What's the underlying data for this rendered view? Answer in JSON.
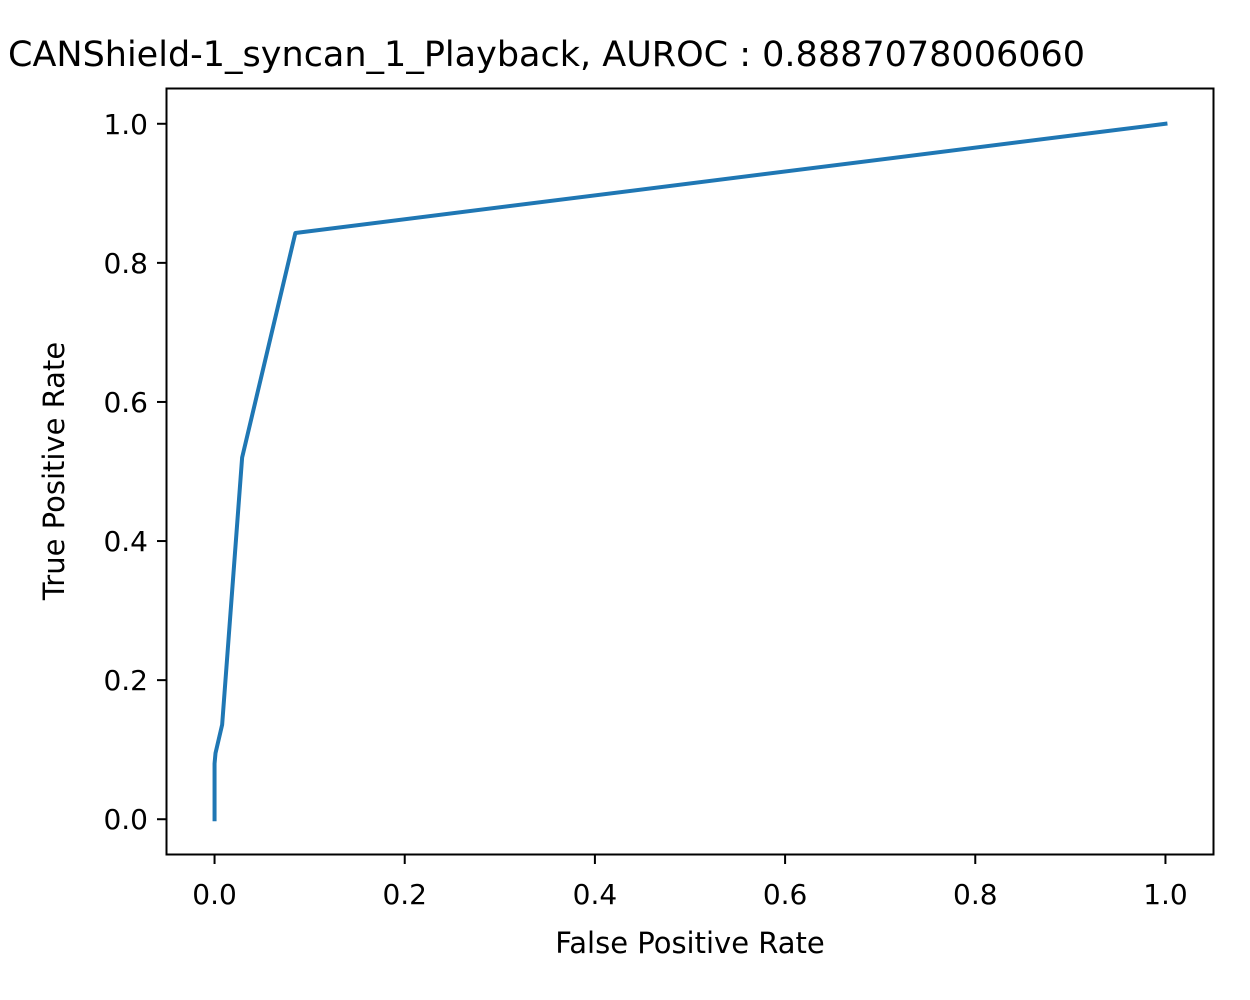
{
  "chart_data": {
    "type": "line",
    "title": "CANShield-1_syncan_1_Playback, AUROC : 0.8887078006060",
    "xlabel": "False Positive Rate",
    "ylabel": "True Positive Rate",
    "xlim": [
      -0.05,
      1.05
    ],
    "ylim": [
      -0.05,
      1.05
    ],
    "xticks": [
      0.0,
      0.2,
      0.4,
      0.6,
      0.8,
      1.0
    ],
    "yticks": [
      0.0,
      0.2,
      0.4,
      0.6,
      0.8,
      1.0
    ],
    "xtick_labels": [
      "0.0",
      "0.2",
      "0.4",
      "0.6",
      "0.8",
      "1.0"
    ],
    "ytick_labels": [
      "0.0",
      "0.2",
      "0.4",
      "0.6",
      "0.8",
      "1.0"
    ],
    "grid": false,
    "legend": "none",
    "series": [
      {
        "color": "#1f77b4",
        "x": [
          0.0,
          0.0,
          0.0,
          0.001,
          0.008,
          0.029,
          0.085,
          1.0
        ],
        "y": [
          0.0,
          0.06,
          0.08,
          0.095,
          0.136,
          0.52,
          0.843,
          1.0
        ]
      }
    ]
  }
}
